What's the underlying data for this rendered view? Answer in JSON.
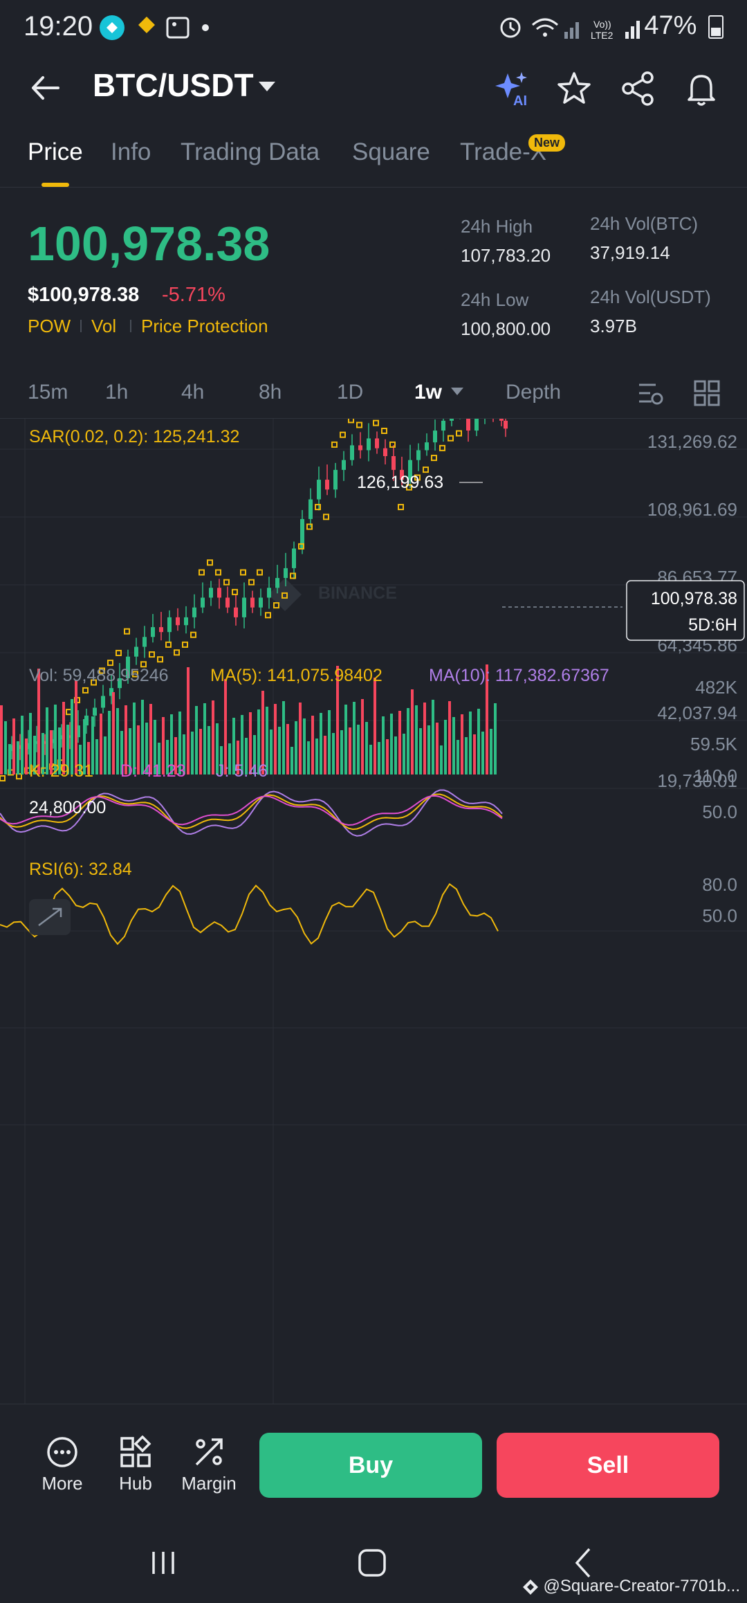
{
  "status_bar": {
    "time": "19:20",
    "battery": "47%"
  },
  "header": {
    "pair": "BTC/USDT"
  },
  "tabs": [
    {
      "label": "Price",
      "active": true
    },
    {
      "label": "Info"
    },
    {
      "label": "Trading Data"
    },
    {
      "label": "Square"
    },
    {
      "label": "Trade-X"
    }
  ],
  "new_badge": "New",
  "price": {
    "last": "100,978.38",
    "usd": "$100,978.38",
    "change": "-5.71%",
    "tags": [
      "POW",
      "Vol",
      "Price Protection"
    ]
  },
  "stats": {
    "high_label": "24h High",
    "high": "107,783.20",
    "low_label": "24h Low",
    "low": "100,800.00",
    "vol_btc_label": "24h Vol(BTC)",
    "vol_btc": "37,919.14",
    "vol_usdt_label": "24h Vol(USDT)",
    "vol_usdt": "3.97B"
  },
  "intervals": [
    "15m",
    "1h",
    "4h",
    "8h",
    "1D",
    "1w",
    "Depth"
  ],
  "active_interval": "1w",
  "chart": {
    "sar_label": "SAR(0.02, 0.2): 125,241.32",
    "watermark": "BINANCE",
    "y_ticks": [
      "131,269.62",
      "108,961.69",
      "86,653.77",
      "64,345.86",
      "42,037.94",
      "19,730.01"
    ],
    "high_marker": "126,199.63",
    "low_marker": "24,800.00",
    "current_price": "100,978.38",
    "countdown": "5D:6H",
    "vol_label": "Vol: 59,488.95246",
    "ma5_label": "MA(5): 141,075.98402",
    "ma10_label": "MA(10): 117,382.67367",
    "vol_ticks": [
      "482K",
      "59.5K"
    ],
    "k_label": "K: 29.31",
    "d_label": "D: 41.23",
    "j_label": "J: 5.46",
    "kdj_ticks": [
      "110.0",
      "50.0"
    ],
    "rsi_label": "RSI(6): 32.84",
    "rsi_ticks": [
      "80.0",
      "50.0"
    ]
  },
  "colors": {
    "up": "#2ebd85",
    "down": "#f6465d",
    "accent": "#f0b90b",
    "bg": "#1f2229",
    "muted": "#848e9c"
  },
  "bottom": {
    "more": "More",
    "hub": "Hub",
    "margin": "Margin",
    "buy": "Buy",
    "sell": "Sell"
  },
  "credit": "@Square-Creator-7701b..."
}
